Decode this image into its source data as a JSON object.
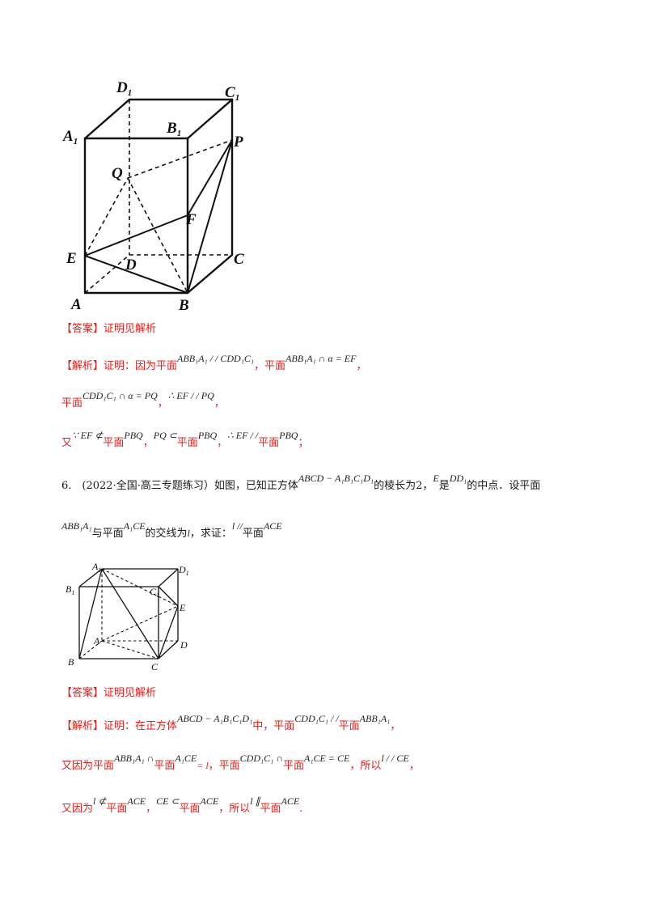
{
  "figure1": {
    "labels": {
      "D1": "D",
      "C1": "C",
      "A1": "A",
      "B1": "B",
      "P": "P",
      "Q": "Q",
      "F": "F",
      "E": "E",
      "D": "D",
      "C": "C",
      "A": "A",
      "B": "B",
      "sub1": "1"
    }
  },
  "answer1": {
    "tag": "【答案】",
    "text": "证明见解析"
  },
  "analysis1": {
    "tag": "【解析】",
    "line1": {
      "t1": "证明：因为平面",
      "m1": "ABB₁A₁ / / CDD₁C₁",
      "t2": "，平面",
      "m2": "ABB₁A₁ ∩ α = EF",
      "t3": "，"
    },
    "line2": {
      "t1": "平面",
      "m1": "CDD₁C₁ ∩ α = PQ",
      "t2": "，",
      "m2": "∴ EF / / PQ",
      "t3": "，"
    },
    "line3": {
      "t1": "又",
      "m1": "∵ EF ⊄",
      "t2": "平面",
      "m2": "PBQ",
      "t3": "，",
      "m3": "PQ ⊂",
      "t4": "平面",
      "m4": "PBQ",
      "t5": "，",
      "m5": "∴ EF / /",
      "t6": "平面",
      "m6": "PBQ",
      "t7": "；"
    }
  },
  "problem6": {
    "line1": {
      "t1": "6.　(2022·全国·高三专题练习）如图，已知正方体",
      "m1": "ABCD − A₁B₁C₁D₁",
      "t2": "的棱长为2，",
      "m2": "E",
      "t3": "是",
      "m3": "DD₁",
      "t4": "的中点．设平面"
    },
    "line2": {
      "m1": "ABB₁A₁",
      "t1": "与平面",
      "m2": "A₁CE",
      "t2": "的交线为",
      "m3": "l",
      "t3": "，求证：",
      "m4": "l //",
      "t4": "平面",
      "m5": "ACE"
    }
  },
  "figure2": {
    "labels": {
      "A1": "A",
      "D1": "D",
      "B1": "B",
      "C1": "C",
      "E": "E",
      "A": "A",
      "D": "D",
      "B": "B",
      "C": "C",
      "sub1": "1"
    }
  },
  "answer2": {
    "tag": "【答案】",
    "text": "证明见解析"
  },
  "analysis2": {
    "tag": "【解析】",
    "line1": {
      "t1": "证明：在正方体",
      "m1": "ABCD − A₁B₁C₁D₁",
      "t2": "中，平面",
      "m2": "CDD₁C₁ / /",
      "t3": "平面",
      "m3": "ABB₁A₁",
      "t4": "，"
    },
    "line2": {
      "t1": "又因为平面",
      "m1": "ABB₁A₁ ∩",
      "t2": "平面",
      "m2": "A₁CE",
      "m3": "= l",
      "t3": "，平面",
      "m4": "CDD₁C₁ ∩",
      "t4": "平面",
      "m5": "A₁CE = CE",
      "t5": "，所以",
      "m6": "l / / CE",
      "t6": "，"
    },
    "line3": {
      "t1": "又因为",
      "m1": "l ⊄",
      "t2": "平面",
      "m2": "ACE",
      "t3": "，",
      "m3": "CE ⊂",
      "t4": "平面",
      "m4": "ACE",
      "t5": "，所以",
      "m5": "l ∥",
      "t6": "平面",
      "m6": "ACE",
      "t7": "."
    }
  },
  "colors": {
    "red": "#e0201b",
    "text": "#1a1a1a"
  }
}
